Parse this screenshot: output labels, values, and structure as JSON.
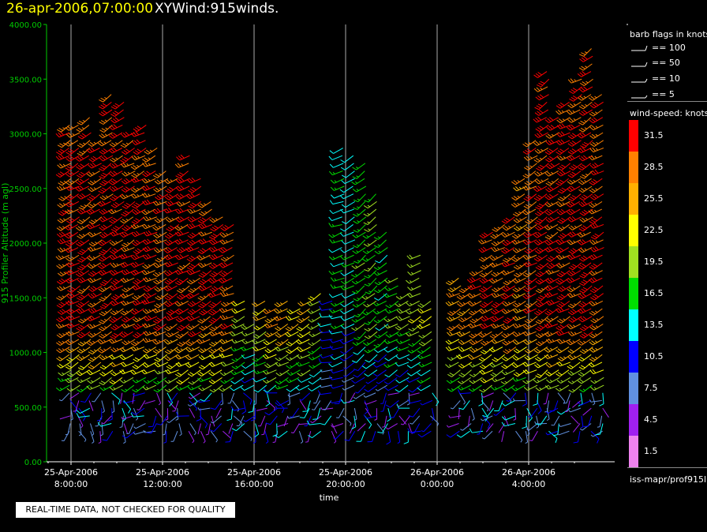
{
  "header": {
    "datetime": "26-apr-2006,07:00:00",
    "product": "XYWind:915winds."
  },
  "footer": {
    "qc_note": "REAL-TIME DATA, NOT CHECKED FOR QUALITY",
    "source": "iss-mapr/prof915l"
  },
  "legend": {
    "barb_title": "barb flags in knots",
    "barb_flags": [
      "== 100",
      "== 50",
      "== 10",
      "== 5"
    ],
    "speed_title": "wind-speed: knots",
    "speed_scale": [
      {
        "label": "31.5",
        "color": "#ff0000"
      },
      {
        "label": "28.5",
        "color": "#ff8000"
      },
      {
        "label": "25.5",
        "color": "#ffb000"
      },
      {
        "label": "22.5",
        "color": "#ffff00"
      },
      {
        "label": "19.5",
        "color": "#a0e020"
      },
      {
        "label": "16.5",
        "color": "#00dd00"
      },
      {
        "label": "13.5",
        "color": "#00ffff"
      },
      {
        "label": "10.5",
        "color": "#0000ff"
      },
      {
        "label": "7.5",
        "color": "#6090e0"
      },
      {
        "label": "4.5",
        "color": "#a020f0"
      },
      {
        "label": "1.5",
        "color": "#ee82ee"
      }
    ]
  },
  "chart_data": {
    "type": "scatter",
    "subtype": "wind-barb time-height",
    "title": "XYWind:915winds.",
    "xlabel": "time",
    "ylabel": "915 Profiler Altitude (m agl)",
    "ylim": [
      0,
      4000
    ],
    "yticks": [
      "0.00",
      "500.00",
      "1000.00",
      "1500.00",
      "2000.00",
      "2500.00",
      "3000.00",
      "3500.00",
      "4000.00"
    ],
    "xlim_hours": [
      6.6,
      30.8
    ],
    "xticks": [
      {
        "h": 8,
        "line1": "25-Apr-2006",
        "line2": "8:00:00"
      },
      {
        "h": 12,
        "line1": "25-Apr-2006",
        "line2": "12:00:00"
      },
      {
        "h": 16,
        "line1": "25-Apr-2006",
        "line2": "16:00:00"
      },
      {
        "h": 20,
        "line1": "25-Apr-2006",
        "line2": "20:00:00"
      },
      {
        "h": 24,
        "line1": "26-Apr-2006",
        "line2": "0:00:00"
      },
      {
        "h": 28,
        "line1": "26-Apr-2006",
        "line2": "4:00:00"
      }
    ],
    "grid": true,
    "profiles": [
      {
        "hour": 6.6,
        "top": 3100,
        "upper_speed": 30,
        "upper_dir": 240
      },
      {
        "hour": 7.0,
        "top": 3100,
        "upper_speed": 31,
        "upper_dir": 240
      },
      {
        "hour": 7.5,
        "top": 3200,
        "upper_speed": 31,
        "upper_dir": 235
      },
      {
        "hour": 8.0,
        "top": 3000,
        "upper_speed": 31,
        "upper_dir": 240
      },
      {
        "hour": 8.5,
        "top": 3400,
        "upper_speed": 31,
        "upper_dir": 235
      },
      {
        "hour": 9.0,
        "top": 3300,
        "upper_speed": 31,
        "upper_dir": 240
      },
      {
        "hour": 9.5,
        "top": 3050,
        "upper_speed": 30,
        "upper_dir": 240
      },
      {
        "hour": 10.0,
        "top": 3100,
        "upper_speed": 31,
        "upper_dir": 240
      },
      {
        "hour": 10.5,
        "top": 2900,
        "upper_speed": 30,
        "upper_dir": 245
      },
      {
        "hour": 11.0,
        "top": 2700,
        "upper_speed": 29,
        "upper_dir": 240
      },
      {
        "hour": 11.5,
        "top": 2600,
        "upper_speed": 31,
        "upper_dir": 240
      },
      {
        "hour": 12.0,
        "top": 2800,
        "upper_speed": 31,
        "upper_dir": 240
      },
      {
        "hour": 12.5,
        "top": 2650,
        "upper_speed": 31,
        "upper_dir": 240
      },
      {
        "hour": 13.0,
        "top": 2400,
        "upper_speed": 30,
        "upper_dir": 240
      },
      {
        "hour": 13.5,
        "top": 2300,
        "upper_speed": 31,
        "upper_dir": 240
      },
      {
        "hour": 14.0,
        "top": 2200,
        "upper_speed": 30,
        "upper_dir": 245
      },
      {
        "hour": 14.5,
        "top": 1500,
        "upper_speed": 22,
        "upper_dir": 240
      },
      {
        "hour": 15.0,
        "top": 1300,
        "upper_speed": 19,
        "upper_dir": 240
      },
      {
        "hour": 15.5,
        "top": 1500,
        "upper_speed": 23,
        "upper_dir": 240
      },
      {
        "hour": 16.0,
        "top": 1400,
        "upper_speed": 27,
        "upper_dir": 240
      },
      {
        "hour": 16.5,
        "top": 1500,
        "upper_speed": 26,
        "upper_dir": 240
      },
      {
        "hour": 17.0,
        "top": 1450,
        "upper_speed": 24,
        "upper_dir": 240
      },
      {
        "hour": 17.5,
        "top": 1500,
        "upper_speed": 25,
        "upper_dir": 240
      },
      {
        "hour": 18.0,
        "top": 1600,
        "upper_speed": 20,
        "upper_dir": 235
      },
      {
        "hour": 18.5,
        "top": 1500,
        "upper_speed": 12,
        "upper_dir": 260
      },
      {
        "hour": 19.0,
        "top": 2900,
        "upper_speed": 15,
        "upper_dir": 250
      },
      {
        "hour": 19.5,
        "top": 2800,
        "upper_speed": 14,
        "upper_dir": 240
      },
      {
        "hour": 20.0,
        "top": 2750,
        "upper_speed": 17,
        "upper_dir": 230
      },
      {
        "hour": 20.5,
        "top": 2450,
        "upper_speed": 18,
        "upper_dir": 230
      },
      {
        "hour": 21.0,
        "top": 2100,
        "upper_speed": 16,
        "upper_dir": 235
      },
      {
        "hour": 21.5,
        "top": 1700,
        "upper_speed": 18,
        "upper_dir": 240
      },
      {
        "hour": 22.0,
        "top": 1550,
        "upper_speed": 19,
        "upper_dir": 240
      },
      {
        "hour": 22.5,
        "top": 1900,
        "upper_speed": 20,
        "upper_dir": 240
      },
      {
        "hour": 23.0,
        "top": 1500,
        "upper_speed": 22,
        "upper_dir": 240
      },
      {
        "hour": 24.3,
        "top": 1700,
        "upper_speed": 27,
        "upper_dir": 240
      },
      {
        "hour": 24.8,
        "top": 1650,
        "upper_speed": 28,
        "upper_dir": 240
      },
      {
        "hour": 25.3,
        "top": 1800,
        "upper_speed": 29,
        "upper_dir": 240
      },
      {
        "hour": 25.8,
        "top": 2100,
        "upper_speed": 30,
        "upper_dir": 240
      },
      {
        "hour": 26.3,
        "top": 2200,
        "upper_speed": 29,
        "upper_dir": 240
      },
      {
        "hour": 26.8,
        "top": 2300,
        "upper_speed": 30,
        "upper_dir": 240
      },
      {
        "hour": 27.3,
        "top": 2600,
        "upper_speed": 28,
        "upper_dir": 240
      },
      {
        "hour": 27.8,
        "top": 3000,
        "upper_speed": 30,
        "upper_dir": 240
      },
      {
        "hour": 28.3,
        "top": 3600,
        "upper_speed": 31,
        "upper_dir": 235
      },
      {
        "hour": 28.8,
        "top": 3200,
        "upper_speed": 31,
        "upper_dir": 240
      },
      {
        "hour": 29.3,
        "top": 3300,
        "upper_speed": 31,
        "upper_dir": 240
      },
      {
        "hour": 29.8,
        "top": 3500,
        "upper_speed": 31,
        "upper_dir": 240
      },
      {
        "hour": 30.3,
        "top": 3800,
        "upper_speed": 31,
        "upper_dir": 235
      },
      {
        "hour": 30.8,
        "top": 3400,
        "upper_speed": 30,
        "upper_dir": 240
      }
    ],
    "surface_level_m": 280,
    "lower_layer": {
      "top_m": 650,
      "speed": 9,
      "dir": 200
    }
  }
}
